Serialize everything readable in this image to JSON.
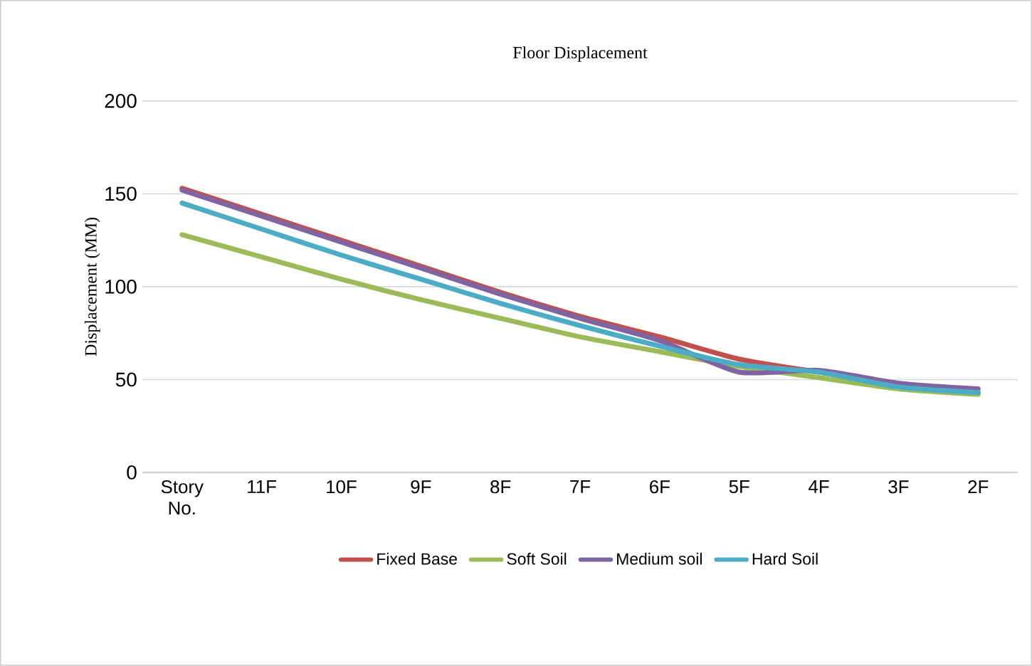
{
  "chart_data": {
    "type": "line",
    "title": "Floor Displacement",
    "ylabel": "Displacement (MM)",
    "categories": [
      "Story No.",
      "11F",
      "10F",
      "9F",
      "8F",
      "7F",
      "6F",
      "5F",
      "4F",
      "3F",
      "2F"
    ],
    "series": [
      {
        "name": "Fixed Base",
        "color": "#c0504d",
        "values": [
          153,
          139,
          125,
          111,
          97,
          84,
          73,
          61,
          54,
          48,
          43
        ]
      },
      {
        "name": "Soft Soil",
        "color": "#9bbb59",
        "values": [
          128,
          116,
          104,
          93,
          83,
          73,
          65,
          57,
          51,
          45,
          42
        ]
      },
      {
        "name": "Medium soil",
        "color": "#8064a2",
        "values": [
          152,
          138,
          124,
          110,
          96,
          83,
          71,
          54,
          55,
          48,
          45
        ]
      },
      {
        "name": "Hard Soil",
        "color": "#4bacc6",
        "values": [
          145,
          131,
          117,
          104,
          91,
          79,
          68,
          58,
          54,
          46,
          43
        ]
      }
    ],
    "ylim": [
      0,
      200
    ],
    "yticks": [
      0,
      50,
      100,
      150,
      200
    ],
    "grid": "y",
    "legend": "bottom"
  }
}
